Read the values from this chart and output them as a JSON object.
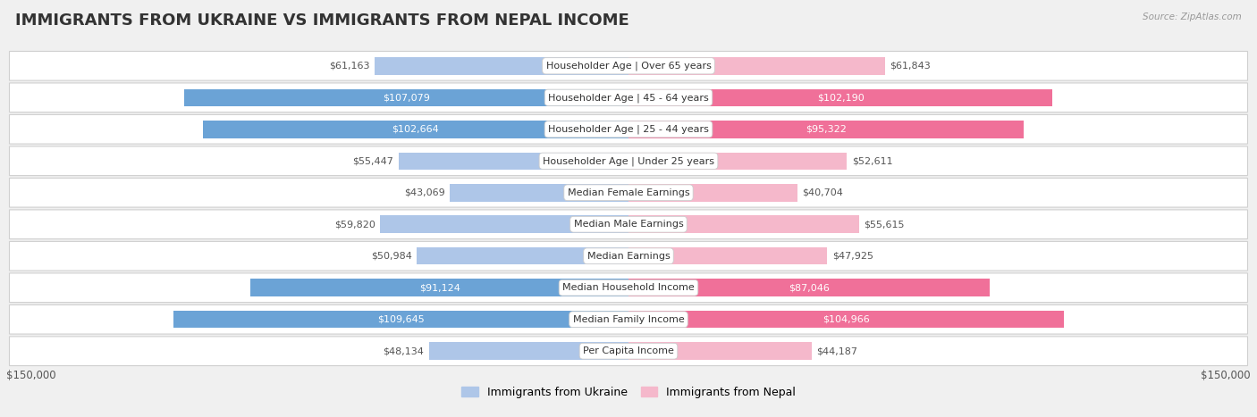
{
  "title": "IMMIGRANTS FROM UKRAINE VS IMMIGRANTS FROM NEPAL INCOME",
  "source": "Source: ZipAtlas.com",
  "categories": [
    "Per Capita Income",
    "Median Family Income",
    "Median Household Income",
    "Median Earnings",
    "Median Male Earnings",
    "Median Female Earnings",
    "Householder Age | Under 25 years",
    "Householder Age | 25 - 44 years",
    "Householder Age | 45 - 64 years",
    "Householder Age | Over 65 years"
  ],
  "ukraine_values": [
    48134,
    109645,
    91124,
    50984,
    59820,
    43069,
    55447,
    102664,
    107079,
    61163
  ],
  "nepal_values": [
    44187,
    104966,
    87046,
    47925,
    55615,
    40704,
    52611,
    95322,
    102190,
    61843
  ],
  "ukraine_labels": [
    "$48,134",
    "$109,645",
    "$91,124",
    "$50,984",
    "$59,820",
    "$43,069",
    "$55,447",
    "$102,664",
    "$107,079",
    "$61,163"
  ],
  "nepal_labels": [
    "$44,187",
    "$104,966",
    "$87,046",
    "$47,925",
    "$55,615",
    "$40,704",
    "$52,611",
    "$95,322",
    "$102,190",
    "$61,843"
  ],
  "ukraine_color_light": "#aec6e8",
  "ukraine_color_dark": "#6ba3d6",
  "nepal_color_light": "#f5b8cb",
  "nepal_color_dark": "#f07099",
  "inside_label_threshold": 65000,
  "max_value": 150000,
  "x_label_left": "$150,000",
  "x_label_right": "$150,000",
  "legend_ukraine": "Immigrants from Ukraine",
  "legend_nepal": "Immigrants from Nepal",
  "background_color": "#f0f0f0",
  "row_bg_color": "#fafafa",
  "title_fontsize": 13,
  "label_fontsize": 8,
  "category_fontsize": 8
}
